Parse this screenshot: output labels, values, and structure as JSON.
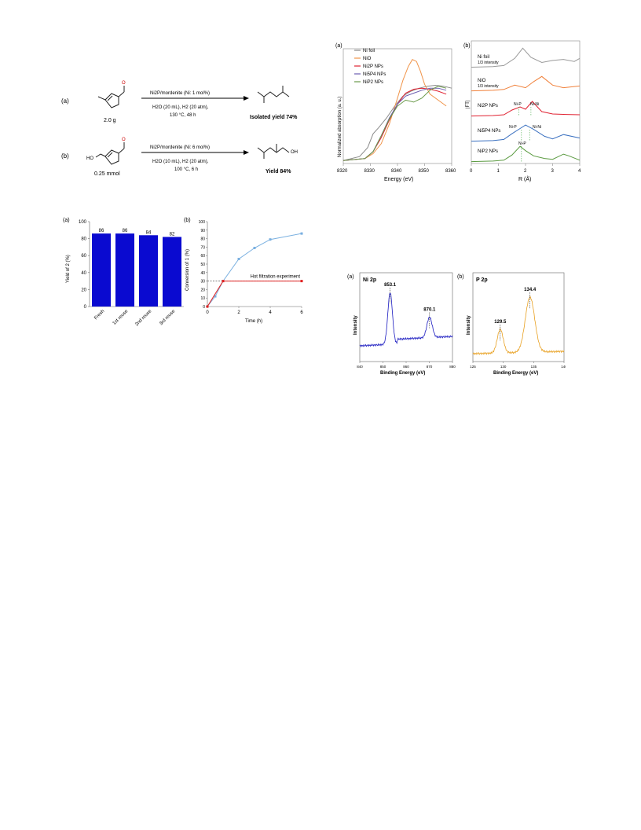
{
  "scheme": {
    "a": {
      "tag": "(a)",
      "amount": "2.0 g",
      "catalyst": "Ni2P/mordenite (Ni: 1 mol%)",
      "line2": "H2O (20 mL), H2 (20 atm),",
      "line3": "130 °C, 48 h",
      "result": "Isolated yield 74%"
    },
    "b": {
      "tag": "(b)",
      "amount": "0.25 mmol",
      "catalyst": "Ni2P/mordenite (Ni: 6 mol%)",
      "line2": "H2O (10 mL), H2 (20 atm),",
      "line3": "100 °C, 6 h",
      "result": "Yield 84%",
      "ho": "HO",
      "oh": "OH"
    },
    "o": "O"
  },
  "chart_data": [
    {
      "id": "xanes",
      "panel": "(a)",
      "type": "line",
      "xlabel": "Energy (eV)",
      "ylabel": "Normalized absorption (a. u.)",
      "xlim": [
        8320,
        8360
      ],
      "xticks": [
        8320,
        8330,
        8340,
        8350,
        8360
      ],
      "legend": "top-left",
      "series": [
        {
          "name": "Ni foil",
          "color": "#8a8a8a",
          "x": [
            8320,
            8326,
            8329,
            8331,
            8333,
            8336,
            8339,
            8342,
            8345,
            8348,
            8351,
            8354,
            8357,
            8360
          ],
          "y": [
            0.03,
            0.07,
            0.16,
            0.3,
            0.36,
            0.46,
            0.58,
            0.68,
            0.73,
            0.76,
            0.78,
            0.79,
            0.78,
            0.76
          ]
        },
        {
          "name": "NiO",
          "color": "#f0944a",
          "x": [
            8320,
            8328,
            8331,
            8334,
            8337,
            8340,
            8342,
            8344,
            8345.5,
            8347,
            8348.5,
            8350,
            8352,
            8355,
            8358
          ],
          "y": [
            0.03,
            0.05,
            0.1,
            0.2,
            0.4,
            0.66,
            0.84,
            0.98,
            1.05,
            1.03,
            0.93,
            0.8,
            0.7,
            0.64,
            0.58
          ]
        },
        {
          "name": "Ni2P NPs",
          "color": "#e02030",
          "x": [
            8320,
            8328,
            8331,
            8334,
            8337,
            8340,
            8343,
            8346,
            8349,
            8352,
            8355,
            8358
          ],
          "y": [
            0.03,
            0.05,
            0.12,
            0.26,
            0.44,
            0.6,
            0.71,
            0.75,
            0.76,
            0.75,
            0.73,
            0.7
          ]
        },
        {
          "name": "Ni5P4 NPs",
          "color": "#6a5cb0",
          "x": [
            8320,
            8328,
            8331,
            8334,
            8337,
            8340,
            8343,
            8346,
            8349,
            8352,
            8355,
            8358
          ],
          "y": [
            0.03,
            0.05,
            0.12,
            0.28,
            0.46,
            0.6,
            0.68,
            0.71,
            0.74,
            0.76,
            0.76,
            0.74
          ]
        },
        {
          "name": "NiP2 NPs",
          "color": "#6a9a4a",
          "x": [
            8320,
            8328,
            8331,
            8334,
            8337,
            8340,
            8343,
            8346,
            8349,
            8352,
            8355,
            8358
          ],
          "y": [
            0.03,
            0.05,
            0.12,
            0.28,
            0.45,
            0.58,
            0.64,
            0.62,
            0.66,
            0.74,
            0.78,
            0.76
          ]
        }
      ]
    },
    {
      "id": "exafs",
      "panel": "(b)",
      "type": "line",
      "xlabel": "R (Å)",
      "ylabel": "|FT|",
      "xlim": [
        0,
        4
      ],
      "xticks": [
        0,
        1,
        2,
        3,
        4
      ],
      "series": [
        {
          "name": "Ni foil",
          "note": "1/3 intensity",
          "color": "#9a9a9a",
          "x": [
            0,
            0.8,
            1.2,
            1.6,
            1.9,
            2.2,
            2.6,
            3.0,
            3.4,
            3.8,
            4.0
          ],
          "y": [
            0.02,
            0.05,
            0.1,
            0.45,
            0.95,
            0.5,
            0.25,
            0.35,
            0.4,
            0.3,
            0.45
          ]
        },
        {
          "name": "NiO",
          "note": "1/3 intensity",
          "color": "#f0803a",
          "x": [
            0,
            0.8,
            1.2,
            1.6,
            2.0,
            2.3,
            2.6,
            3.0,
            3.4,
            4.0
          ],
          "y": [
            0.02,
            0.05,
            0.1,
            0.35,
            0.2,
            0.55,
            0.85,
            0.35,
            0.2,
            0.3
          ]
        },
        {
          "name": "Ni2P NPs",
          "color": "#e02030",
          "x": [
            0,
            0.8,
            1.2,
            1.5,
            1.8,
            2.0,
            2.25,
            2.6,
            3.0,
            3.5,
            4.0
          ],
          "y": [
            0.02,
            0.05,
            0.1,
            0.4,
            0.6,
            0.45,
            0.95,
            0.3,
            0.15,
            0.12,
            0.1
          ]
        },
        {
          "name": "Ni5P4 NPs",
          "color": "#3a70c0",
          "x": [
            0,
            0.8,
            1.2,
            1.5,
            1.8,
            2.0,
            2.3,
            2.7,
            3.0,
            3.4,
            4.0
          ],
          "y": [
            0.02,
            0.05,
            0.12,
            0.45,
            0.75,
            0.95,
            0.7,
            0.3,
            0.15,
            0.4,
            0.2
          ]
        },
        {
          "name": "NiP2 NPs",
          "color": "#5a9a40",
          "x": [
            0,
            0.8,
            1.2,
            1.5,
            1.8,
            2.0,
            2.3,
            2.7,
            3.0,
            3.4,
            3.6,
            4.0
          ],
          "y": [
            0.02,
            0.05,
            0.1,
            0.4,
            0.9,
            0.65,
            0.35,
            0.2,
            0.15,
            0.45,
            0.35,
            0.1
          ]
        }
      ],
      "annotations": [
        "Ni-P",
        "Ni-Ni",
        "Ni-P",
        "Ni-Ni",
        "Ni-P"
      ]
    },
    {
      "id": "reuse",
      "panel": "(a)",
      "type": "bar",
      "ylabel": "Yield of 2 (%)",
      "ylim": [
        0,
        100
      ],
      "yticks": [
        0,
        20,
        40,
        60,
        80,
        100
      ],
      "categories": [
        "Fresh",
        "1st reuse",
        "2nd reuse",
        "3rd reuse"
      ],
      "values": [
        86,
        86,
        84,
        82
      ],
      "color": "#0a0ad0"
    },
    {
      "id": "kinetics",
      "panel": "(b)",
      "type": "line",
      "xlabel": "Time (h)",
      "ylabel": "Conversion of 1 (%)",
      "xlim": [
        0,
        6
      ],
      "ylim": [
        0,
        100
      ],
      "xticks": [
        0,
        2,
        4,
        6
      ],
      "yticks": [
        0,
        10,
        20,
        30,
        40,
        50,
        60,
        70,
        80,
        90,
        100
      ],
      "annotation": "Hot filtration experiment",
      "series": [
        {
          "color": "#7ab0e0",
          "x": [
            0,
            0.5,
            1,
            2,
            3,
            4,
            6
          ],
          "y": [
            0,
            12,
            30,
            56,
            69,
            79,
            86
          ]
        },
        {
          "color": "#e02020",
          "x": [
            0,
            1,
            6
          ],
          "y": [
            0,
            30,
            30
          ]
        }
      ]
    },
    {
      "id": "xps-ni",
      "panel": "(a)",
      "label": "Ni 2p",
      "type": "line",
      "xlabel": "Binding Energy (eV)",
      "ylabel": "Intensity",
      "xlim": [
        840,
        880
      ],
      "xticks": [
        840,
        850,
        860,
        870,
        880
      ],
      "peaks": [
        853.1,
        870.1
      ],
      "peak_labels": [
        "853.1",
        "870.1"
      ],
      "color": "#1a1ac0"
    },
    {
      "id": "xps-p",
      "panel": "(b)",
      "label": "P 2p",
      "type": "line",
      "xlabel": "Binding Energy (eV)",
      "ylabel": "Intensity",
      "xlim": [
        125,
        140
      ],
      "xticks": [
        125,
        130,
        135,
        140
      ],
      "peaks": [
        129.5,
        134.4
      ],
      "peak_labels": [
        "129.5",
        "134.4"
      ],
      "color": "#e8a020"
    }
  ]
}
